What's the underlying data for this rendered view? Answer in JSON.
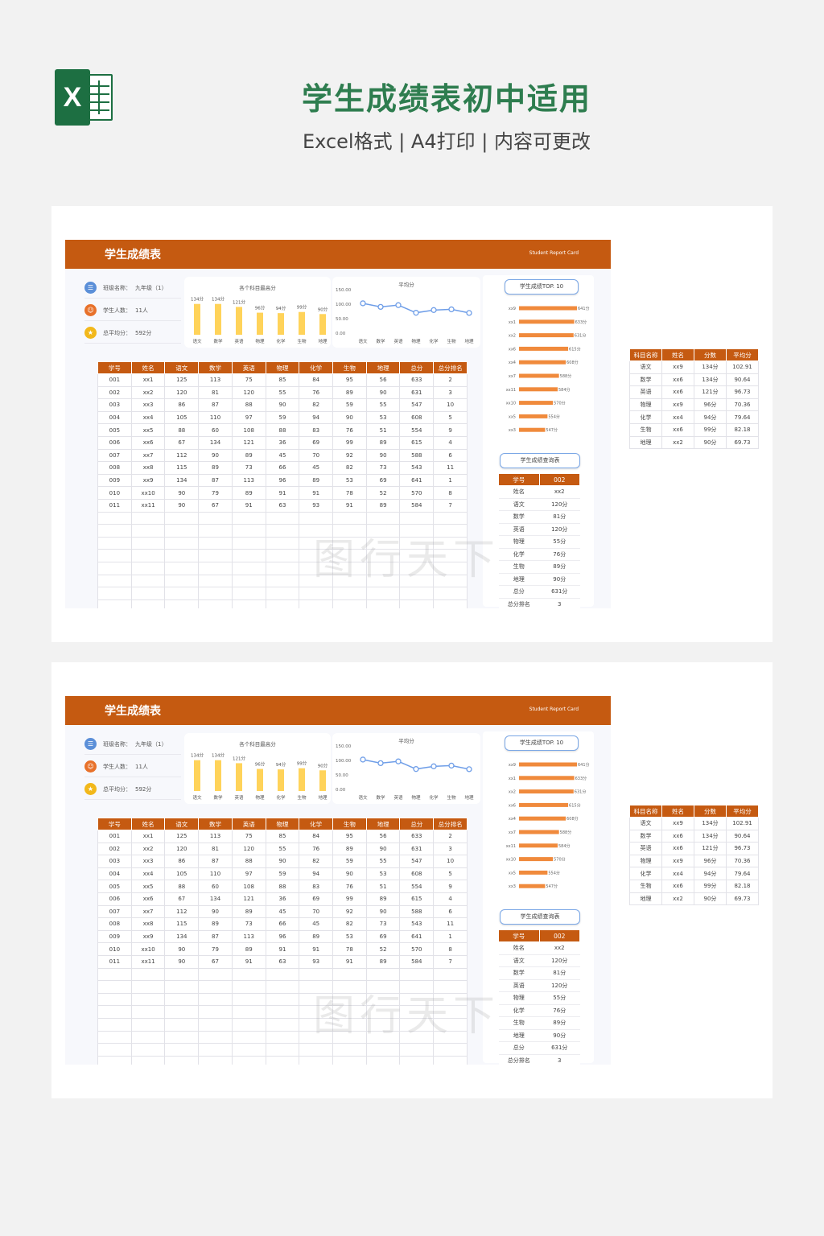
{
  "header": {
    "title": "学生成绩表初中适用",
    "subtitle": "Excel格式 | A4打印 | 内容可更改",
    "logo_letter": "X"
  },
  "sheet": {
    "title": "学生成绩表",
    "english_title": "Student Report Card",
    "info": [
      {
        "label": "班级名称：",
        "value": "九年级（1）",
        "icon": "class-icon",
        "color": "#5b8fd8"
      },
      {
        "label": "学生人数：",
        "value": "11人",
        "icon": "people-icon",
        "color": "#e8712a"
      },
      {
        "label": "总平均分：",
        "value": "592分",
        "icon": "score-icon",
        "color": "#f2b81b"
      }
    ],
    "max_chart": {
      "title": "各个科目最高分",
      "categories": [
        "语文",
        "数学",
        "英语",
        "物理",
        "化学",
        "生物",
        "地理"
      ],
      "labels": [
        "134分",
        "134分",
        "121分",
        "96分",
        "94分",
        "99分",
        "90分"
      ],
      "values": [
        134,
        134,
        121,
        96,
        94,
        99,
        90
      ],
      "color": "#ffd35a"
    },
    "avg_chart": {
      "title": "平均分",
      "categories": [
        "语文",
        "数学",
        "英语",
        "物理",
        "化学",
        "生物",
        "地理"
      ],
      "values": [
        102.91,
        90.64,
        96.73,
        70.36,
        79.64,
        82.18,
        69.73
      ],
      "y_ticks": [
        "150.00",
        "100.00",
        "50.00",
        "0.00"
      ],
      "color": "#6f9ee8"
    },
    "grade_table": {
      "headers": [
        "学号",
        "姓名",
        "语文",
        "数学",
        "英语",
        "物理",
        "化学",
        "生物",
        "地理",
        "总分",
        "总分排名"
      ],
      "rows": [
        [
          "001",
          "xx1",
          "125",
          "113",
          "75",
          "85",
          "84",
          "95",
          "56",
          "633",
          "2"
        ],
        [
          "002",
          "xx2",
          "120",
          "81",
          "120",
          "55",
          "76",
          "89",
          "90",
          "631",
          "3"
        ],
        [
          "003",
          "xx3",
          "86",
          "87",
          "88",
          "90",
          "82",
          "59",
          "55",
          "547",
          "10"
        ],
        [
          "004",
          "xx4",
          "105",
          "110",
          "97",
          "59",
          "94",
          "90",
          "53",
          "608",
          "5"
        ],
        [
          "005",
          "xx5",
          "88",
          "60",
          "108",
          "88",
          "83",
          "76",
          "51",
          "554",
          "9"
        ],
        [
          "006",
          "xx6",
          "67",
          "134",
          "121",
          "36",
          "69",
          "99",
          "89",
          "615",
          "4"
        ],
        [
          "007",
          "xx7",
          "112",
          "90",
          "89",
          "45",
          "70",
          "92",
          "90",
          "588",
          "6"
        ],
        [
          "008",
          "xx8",
          "115",
          "89",
          "73",
          "66",
          "45",
          "82",
          "73",
          "543",
          "11"
        ],
        [
          "009",
          "xx9",
          "134",
          "87",
          "113",
          "96",
          "89",
          "53",
          "69",
          "641",
          "1"
        ],
        [
          "010",
          "xx10",
          "90",
          "79",
          "89",
          "91",
          "91",
          "78",
          "52",
          "570",
          "8"
        ],
        [
          "011",
          "xx11",
          "90",
          "67",
          "91",
          "63",
          "93",
          "91",
          "89",
          "584",
          "7"
        ]
      ],
      "empty_rows": 8
    },
    "top_button": "学生成绩TOP. 10",
    "top10": {
      "names": [
        "xx9",
        "xx1",
        "xx2",
        "xx6",
        "xx4",
        "xx7",
        "xx11",
        "xx10",
        "xx5",
        "xx3"
      ],
      "labels": [
        "641分",
        "633分",
        "631分",
        "615分",
        "608分",
        "588分",
        "584分",
        "570分",
        "554分",
        "547分"
      ],
      "values": [
        641,
        633,
        631,
        615,
        608,
        588,
        584,
        570,
        554,
        547
      ],
      "color": "#f08a3c"
    },
    "query_button": "学生成绩查询表",
    "lookup": {
      "header": [
        "学号",
        "002"
      ],
      "rows": [
        [
          "姓名",
          "xx2"
        ],
        [
          "语文",
          "120分"
        ],
        [
          "数学",
          "81分"
        ],
        [
          "英语",
          "120分"
        ],
        [
          "物理",
          "55分"
        ],
        [
          "化学",
          "76分"
        ],
        [
          "生物",
          "89分"
        ],
        [
          "地理",
          "90分"
        ],
        [
          "总分",
          "631分"
        ],
        [
          "总分排名",
          "3"
        ]
      ]
    },
    "avg_table": {
      "headers": [
        "科目名称",
        "姓名",
        "分数",
        "平均分"
      ],
      "rows": [
        [
          "语文",
          "xx9",
          "134分",
          "102.91"
        ],
        [
          "数学",
          "xx6",
          "134分",
          "90.64"
        ],
        [
          "英语",
          "xx6",
          "121分",
          "96.73"
        ],
        [
          "物理",
          "xx9",
          "96分",
          "70.36"
        ],
        [
          "化学",
          "xx4",
          "94分",
          "79.64"
        ],
        [
          "生物",
          "xx6",
          "99分",
          "82.18"
        ],
        [
          "地理",
          "xx2",
          "90分",
          "69.73"
        ]
      ]
    }
  },
  "watermark": "图行天下",
  "colors": {
    "accent": "#c55a11",
    "title_green": "#2e7d4f",
    "excel_green": "#1d6f42"
  }
}
